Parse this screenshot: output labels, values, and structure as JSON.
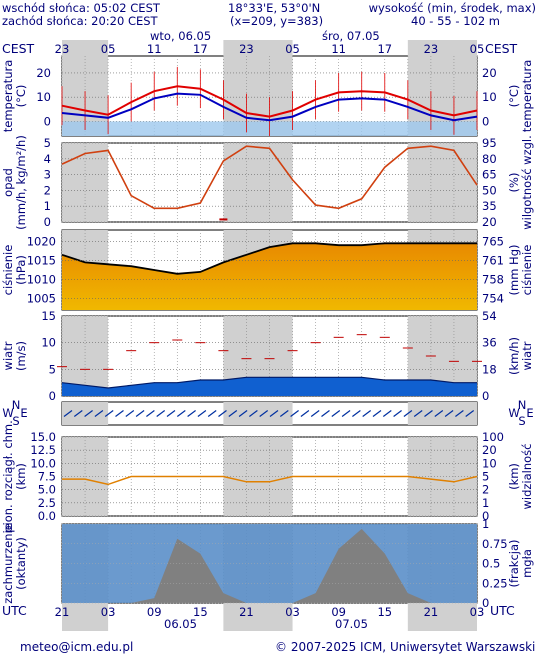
{
  "header": {
    "sunrise": "wschód słońca: 05:02 CEST",
    "sunset": "zachód słońca: 20:20 CEST",
    "coords": "18°33'E, 53°0'N",
    "grid": "(x=209,  y=383)",
    "height_title": "wysokość (min, środek, max)",
    "heights": "40 - 55 - 102 m"
  },
  "top_axis": {
    "zone": "CEST",
    "ticks": [
      "23",
      "05",
      "11",
      "17",
      "23",
      "05",
      "11",
      "17",
      "23",
      "05"
    ],
    "days": [
      "wto, 06.05",
      "śro, 07.05"
    ]
  },
  "bottom_axis": {
    "zone": "UTC",
    "ticks": [
      "21",
      "03",
      "09",
      "15",
      "21",
      "03",
      "09",
      "15",
      "21",
      "03"
    ],
    "dates": [
      "06.05",
      "07.05"
    ]
  },
  "panels": {
    "temperature": {
      "left": [
        "temperatura",
        "(°C)"
      ],
      "right": [
        "(°C)",
        "temperatura"
      ],
      "ticks": [
        "20",
        "10",
        "0"
      ]
    },
    "precip": {
      "left": [
        "opad",
        "(mm/h, kg/m²/h)"
      ],
      "right": [
        "(%)",
        "wilgotność wzgl."
      ],
      "ticks_left": [
        "5",
        "4",
        "3",
        "2",
        "1",
        "0"
      ],
      "ticks_right": [
        "95",
        "80",
        "65",
        "50",
        "35",
        "20"
      ]
    },
    "pressure": {
      "left": [
        "ciśnienie",
        "(hPa)"
      ],
      "right": [
        "(mm Hg)",
        "ciśnienie"
      ],
      "ticks_left": [
        "1020",
        "1015",
        "1010",
        "1005"
      ],
      "ticks_right": [
        "765",
        "761",
        "758",
        "754"
      ]
    },
    "wind": {
      "left": [
        "wiatr",
        "(m/s)"
      ],
      "right": [
        "(km/h)",
        "wiatr"
      ],
      "ticks_left": [
        "15",
        "10",
        "5",
        "0"
      ],
      "ticks_right": [
        "54",
        "36",
        "18",
        "0"
      ]
    },
    "wind_dir": {
      "labels": [
        "W",
        "N",
        "E",
        "S"
      ]
    },
    "visibility": {
      "left": [
        "pion. rozciągł. chm.",
        "(km)"
      ],
      "right": [
        "(km)",
        "widzialność"
      ],
      "ticks_left": [
        "15.0",
        "12.5",
        "10.0",
        "7.5",
        "5.0",
        "2.5",
        "0.0"
      ],
      "ticks_right": [
        "100",
        "20",
        "10",
        "5",
        "2",
        "1",
        "0"
      ]
    },
    "clouds": {
      "left": [
        "zachmurzenie",
        "(oktanty)"
      ],
      "right": [
        "(frakcja)",
        "mgła"
      ],
      "ticks_right": [
        "1",
        "0.75",
        "0.5",
        "0.25",
        "0"
      ]
    }
  },
  "footer": {
    "email": "meteo@icm.edu.pl",
    "copyright": "© 2007-2025 ICM, Uniwersytet Warszawski"
  },
  "chart_data": {
    "type": "line",
    "x_utc_hours": [
      0,
      3,
      6,
      9,
      12,
      15,
      18,
      21,
      24,
      27,
      30,
      33,
      36,
      39,
      42,
      45,
      48,
      51,
      54
    ],
    "x_start_label": "06.05 21 UTC",
    "temperature": [
      6.5,
      4.5,
      2.8,
      8.0,
      12.5,
      14.5,
      13.5,
      9.0,
      3.5,
      2.0,
      4.5,
      9.0,
      12.0,
      12.5,
      12.0,
      9.0,
      4.5,
      2.5,
      4.5
    ],
    "dew_point": [
      3.5,
      2.5,
      1.5,
      5.0,
      9.5,
      11.5,
      11.0,
      6.0,
      1.5,
      0.5,
      2.0,
      6.0,
      9.0,
      9.5,
      9.0,
      6.0,
      2.5,
      0.5,
      2.0
    ],
    "precip_mm_h": [
      0,
      0,
      0,
      0,
      0,
      0,
      0,
      0.1,
      0,
      0,
      0,
      0,
      0,
      0,
      0,
      0,
      0,
      0,
      0
    ],
    "humidity_pct": [
      75,
      85,
      88,
      45,
      33,
      33,
      38,
      78,
      92,
      90,
      60,
      36,
      33,
      42,
      72,
      90,
      92,
      88,
      55
    ],
    "pressure_hPa": [
      1016.5,
      1014.5,
      1014.0,
      1013.5,
      1012.5,
      1011.5,
      1012.0,
      1014.5,
      1016.5,
      1018.5,
      1019.5,
      1019.5,
      1019.0,
      1019.0,
      1019.5,
      1019.5,
      1019.5,
      1019.5,
      1019.5
    ],
    "wind_speed_ms": [
      2.5,
      2.0,
      1.5,
      2.0,
      2.5,
      2.5,
      3.0,
      3.0,
      3.5,
      3.5,
      3.5,
      3.5,
      3.5,
      3.5,
      3.0,
      3.0,
      3.0,
      2.5,
      2.5
    ],
    "wind_gust_ms": [
      5.5,
      5.0,
      5.0,
      8.5,
      10.0,
      10.5,
      10.0,
      8.5,
      7.0,
      7.0,
      8.5,
      10.0,
      11.0,
      11.5,
      11.0,
      9.0,
      7.5,
      6.5,
      6.5
    ],
    "visibility_km_label_scale": [
      7.0,
      7.0,
      6.0,
      7.5,
      7.5,
      7.5,
      7.5,
      7.5,
      6.5,
      6.5,
      7.5,
      7.5,
      7.5,
      7.5,
      7.5,
      7.5,
      7.0,
      6.5,
      7.5
    ],
    "cloud_octants": [
      0,
      0,
      0,
      0,
      0.5,
      6.5,
      5.0,
      1.0,
      0,
      0,
      0,
      1.0,
      5.5,
      7.5,
      5.0,
      1.0,
      0,
      0,
      0
    ],
    "colors": {
      "temperature": "#e00000",
      "dew_point": "#0000c0",
      "humidity": "#d04010",
      "pressure_fill": "#f0a000",
      "wind_fill": "#1060d0",
      "night": "#d0d0d0",
      "panel_bg": "#e8f0f8"
    }
  }
}
